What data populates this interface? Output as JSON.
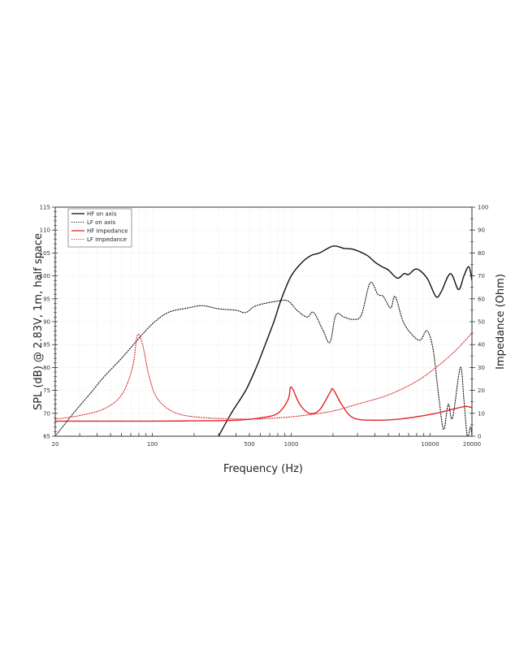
{
  "chart_data": {
    "type": "line",
    "title": "",
    "xlabel": "Frequency (Hz)",
    "ylabel": "SPL (dB) @ 2.83V, 1m, half space",
    "y2label": "Impedance (Ohm)",
    "xscale": "log",
    "xlim": [
      20,
      20000
    ],
    "ylim": [
      65,
      115
    ],
    "y2lim": [
      0,
      100
    ],
    "grid": true,
    "legend_position": "upper left",
    "x_tick_labels": [
      {
        "value": 20,
        "label": "20"
      },
      {
        "value": 100,
        "label": "100"
      },
      {
        "value": 500,
        "label": "500"
      },
      {
        "value": 1000,
        "label": "1000"
      },
      {
        "value": 10000,
        "label": "10000"
      },
      {
        "value": 20000,
        "label": "20000"
      }
    ],
    "y_ticks": [
      65,
      70,
      75,
      80,
      85,
      90,
      95,
      100,
      105,
      110,
      115
    ],
    "y2_ticks": [
      0,
      10,
      20,
      30,
      40,
      50,
      60,
      70,
      80,
      90,
      100
    ],
    "series": [
      {
        "name": "HF on axis",
        "axis": "left",
        "color": "#111111",
        "style": "solid",
        "x": [
          300,
          370,
          470,
          560,
          650,
          750,
          850,
          1000,
          1200,
          1400,
          1600,
          2000,
          2400,
          2800,
          3500,
          4000,
          4500,
          5000,
          5800,
          6500,
          7000,
          8000,
          9500,
          11000,
          12000,
          14000,
          16000,
          17500,
          19000,
          20000
        ],
        "values": [
          65,
          70,
          75,
          80,
          85,
          90,
          95,
          100,
          103,
          104.5,
          105,
          106.5,
          106,
          105.8,
          104.5,
          103,
          102,
          101.3,
          99.5,
          100.5,
          100.3,
          101.5,
          99.5,
          95.5,
          96.5,
          100.5,
          97,
          100,
          102,
          99
        ]
      },
      {
        "name": "LF on axis",
        "axis": "left",
        "color": "#111111",
        "style": "dotted",
        "x": [
          20,
          27,
          35,
          45,
          60,
          78,
          100,
          130,
          180,
          230,
          300,
          400,
          470,
          560,
          800,
          950,
          1100,
          1300,
          1450,
          1700,
          1900,
          2100,
          2400,
          2800,
          3200,
          3700,
          4200,
          4600,
          5200,
          5600,
          6400,
          7500,
          8500,
          9500,
          10500,
          11500,
          12500,
          13500,
          14500,
          16500,
          17500,
          18500,
          19500,
          20000
        ],
        "values": [
          65,
          70,
          74,
          78,
          82,
          86,
          89.5,
          92,
          93,
          93.5,
          92.8,
          92.5,
          92,
          93.5,
          94.5,
          94.5,
          92.5,
          91,
          92,
          88,
          85.5,
          91.5,
          91,
          90.5,
          91.5,
          98.5,
          96,
          95.5,
          93,
          95.5,
          90,
          87,
          86,
          88,
          84,
          74,
          66.5,
          72,
          69,
          80,
          73,
          65,
          67,
          65
        ]
      },
      {
        "name": "HF Impedance",
        "axis": "right",
        "color": "#e0262b",
        "style": "solid",
        "x": [
          20,
          100,
          200,
          400,
          600,
          800,
          950,
          1000,
          1150,
          1350,
          1600,
          1900,
          2000,
          2300,
          2800,
          4000,
          6000,
          8000,
          11000,
          15000,
          18000,
          20000
        ],
        "values": [
          6.6,
          6.6,
          6.7,
          7,
          8,
          10,
          16,
          21.5,
          14,
          10,
          11.5,
          19,
          20.5,
          14,
          8,
          7,
          7.5,
          8.5,
          10,
          12,
          13,
          12.5
        ]
      },
      {
        "name": "LF Impedance",
        "axis": "right",
        "color": "#e0262b",
        "style": "dotted",
        "x": [
          20,
          30,
          45,
          60,
          72,
          78,
          85,
          95,
          110,
          150,
          250,
          500,
          800,
          1200,
          2000,
          3000,
          5000,
          8000,
          11000,
          15000,
          20000
        ],
        "values": [
          7.5,
          9,
          12,
          18,
          30,
          44,
          40,
          26,
          16,
          10,
          8,
          7.5,
          8,
          9,
          11,
          14,
          18,
          24,
          30,
          37,
          45
        ]
      }
    ]
  }
}
